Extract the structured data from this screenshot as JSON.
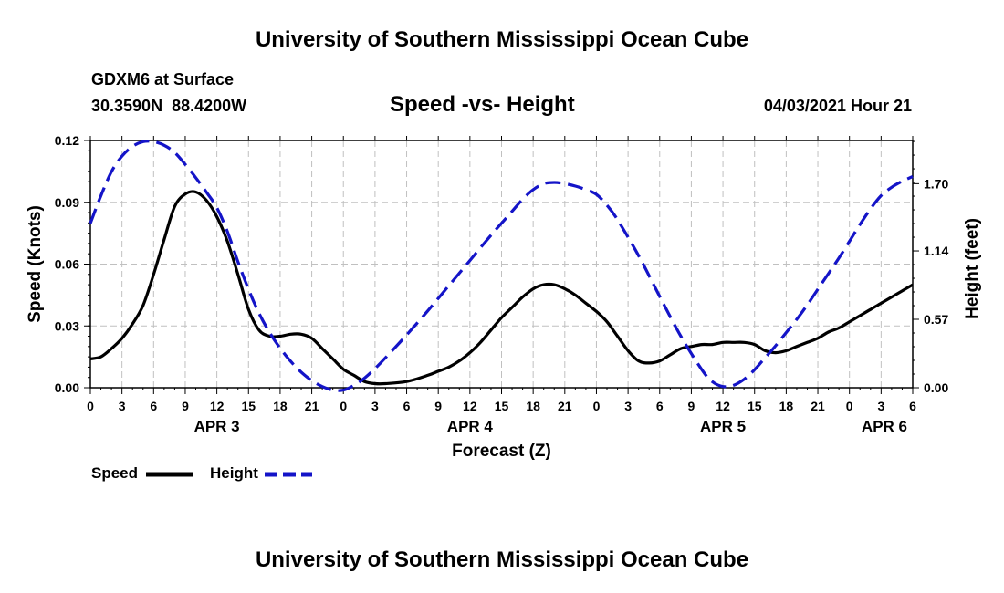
{
  "header": {
    "title": "University of Southern Mississippi Ocean Cube",
    "station": "GDXM6 at Surface",
    "coords": "30.3590N  88.4200W",
    "chart_title": "Speed -vs- Height",
    "date": "04/03/2021 Hour 21"
  },
  "footer": {
    "title": "University of Southern Mississippi Ocean Cube"
  },
  "legend": {
    "speed": "Speed",
    "height": "Height"
  },
  "colors": {
    "speed": "#000000",
    "height": "#1414c8",
    "grid": "#c0c0c0"
  },
  "chart_data": {
    "type": "line",
    "title": "Speed -vs- Height",
    "xlabel": "Forecast (Z)",
    "ylabel": "Speed (Knots)",
    "y2label": "Height (feet)",
    "grid": true,
    "xlim": [
      0,
      78
    ],
    "ylim": [
      0,
      0.12
    ],
    "y2lim": [
      0,
      2.06
    ],
    "yticks": [
      "0.00",
      "0.03",
      "0.06",
      "0.09",
      "0.12"
    ],
    "y2ticks": [
      "0.00",
      "0.57",
      "1.14",
      "1.70"
    ],
    "y2tick_values": [
      0,
      0.57,
      1.14,
      1.7
    ],
    "xtick_labels": [
      "0",
      "3",
      "6",
      "9",
      "12",
      "15",
      "18",
      "21",
      "0",
      "3",
      "6",
      "9",
      "12",
      "15",
      "18",
      "21",
      "0",
      "3",
      "6",
      "9",
      "12",
      "15",
      "18",
      "21",
      "0",
      "3",
      "6"
    ],
    "day_labels": [
      {
        "label": "APR 3",
        "x": 12
      },
      {
        "label": "APR 4",
        "x": 36
      },
      {
        "label": "APR 5",
        "x": 60
      },
      {
        "label": "APR 6",
        "x": 78
      }
    ],
    "series": [
      {
        "name": "Speed",
        "axis": "left",
        "style": "solid",
        "x": [
          0,
          1,
          2,
          3,
          4,
          5,
          6,
          7,
          8,
          9,
          10,
          11,
          12,
          13,
          14,
          15,
          16,
          17,
          18,
          19,
          20,
          21,
          22,
          23,
          24,
          25,
          26,
          27,
          28,
          30,
          32,
          33,
          34,
          35,
          36,
          37,
          38,
          39,
          40,
          41,
          42,
          43,
          44,
          45,
          46,
          47,
          48,
          49,
          50,
          51,
          52,
          53,
          54,
          55,
          56,
          57,
          58,
          59,
          60,
          61,
          62,
          63,
          64,
          65,
          66,
          67,
          68,
          69,
          70,
          71,
          72,
          73,
          74,
          75,
          76,
          77,
          78
        ],
        "values": [
          0.014,
          0.015,
          0.019,
          0.024,
          0.031,
          0.04,
          0.055,
          0.072,
          0.088,
          0.094,
          0.095,
          0.091,
          0.083,
          0.071,
          0.055,
          0.038,
          0.028,
          0.025,
          0.025,
          0.026,
          0.026,
          0.024,
          0.019,
          0.014,
          0.009,
          0.006,
          0.003,
          0.002,
          0.002,
          0.003,
          0.006,
          0.008,
          0.01,
          0.013,
          0.017,
          0.022,
          0.028,
          0.034,
          0.039,
          0.044,
          0.048,
          0.05,
          0.05,
          0.048,
          0.045,
          0.041,
          0.037,
          0.032,
          0.025,
          0.018,
          0.013,
          0.012,
          0.013,
          0.016,
          0.019,
          0.02,
          0.021,
          0.021,
          0.022,
          0.022,
          0.022,
          0.021,
          0.018,
          0.017,
          0.018,
          0.02,
          0.022,
          0.024,
          0.027,
          0.029,
          0.032,
          0.035,
          0.038,
          0.041,
          0.044,
          0.047,
          0.05
        ]
      },
      {
        "name": "Height",
        "axis": "right",
        "style": "dashed",
        "x": [
          0,
          1,
          2,
          3,
          4,
          5,
          6,
          7,
          8,
          9,
          10,
          11,
          12,
          13,
          14,
          15,
          16,
          17,
          18,
          19,
          20,
          21,
          22,
          23,
          24,
          25,
          26,
          27,
          28,
          30,
          32,
          34,
          36,
          38,
          40,
          41,
          42,
          43,
          44,
          45,
          46,
          47,
          48,
          49,
          50,
          52,
          54,
          56,
          58,
          59,
          60,
          61,
          62,
          63,
          64,
          65,
          66,
          67,
          68,
          69,
          70,
          71,
          72,
          73,
          74,
          75,
          76,
          77,
          78
        ],
        "values": [
          1.37,
          1.6,
          1.8,
          1.93,
          2.01,
          2.05,
          2.05,
          2.02,
          1.96,
          1.86,
          1.75,
          1.63,
          1.5,
          1.3,
          1.05,
          0.82,
          0.62,
          0.46,
          0.33,
          0.22,
          0.13,
          0.06,
          0.01,
          -0.02,
          -0.02,
          0.02,
          0.08,
          0.16,
          0.25,
          0.44,
          0.64,
          0.85,
          1.06,
          1.27,
          1.47,
          1.57,
          1.65,
          1.7,
          1.71,
          1.7,
          1.68,
          1.65,
          1.61,
          1.52,
          1.4,
          1.1,
          0.76,
          0.43,
          0.15,
          0.05,
          0.01,
          0.02,
          0.07,
          0.15,
          0.25,
          0.35,
          0.46,
          0.57,
          0.69,
          0.82,
          0.95,
          1.08,
          1.22,
          1.36,
          1.49,
          1.6,
          1.67,
          1.72,
          1.76
        ]
      }
    ]
  }
}
